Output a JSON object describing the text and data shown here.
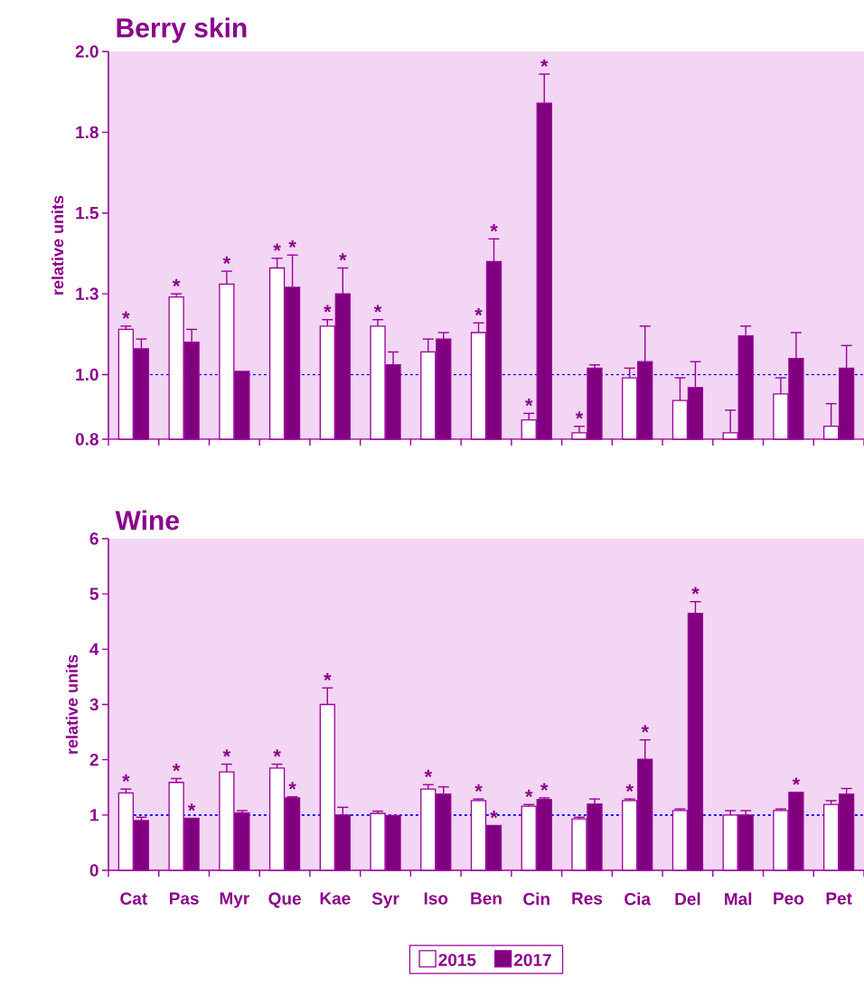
{
  "chart_data": [
    {
      "type": "bar",
      "title": "Berry skin",
      "ylabel": "relative units",
      "categories": [
        "Cat",
        "Pas",
        "Myr",
        "Que",
        "Kae",
        "Syr",
        "Iso",
        "Ben",
        "Cin",
        "Res",
        "Cia",
        "Del",
        "Mal",
        "Peo",
        "Pet"
      ],
      "ylim": [
        0.8,
        2.0
      ],
      "yticks": [
        0.8,
        {
          "value": 1.0,
          "label": "1.0"
        },
        {
          "value": 1.25,
          "label": "1.3"
        },
        1.5,
        {
          "value": 1.75,
          "label": "1.8"
        },
        {
          "value": 2.0,
          "label": "2.0"
        }
      ],
      "tick_labels": "y",
      "ref_lines": [
        {
          "axis": "y",
          "value": 1.0,
          "color": "#0000ff",
          "line_style": "dashed"
        }
      ],
      "series": [
        {
          "color": "#ffffff",
          "values": [
            1.14,
            1.24,
            1.28,
            1.33,
            1.15,
            1.15,
            1.07,
            1.13,
            0.86,
            0.82,
            0.99,
            0.92,
            0.82,
            0.94,
            0.84
          ],
          "errors": [
            [
              1.14,
              1.15
            ],
            [
              1.24,
              1.25
            ],
            [
              1.28,
              1.32
            ],
            [
              1.33,
              1.36
            ],
            [
              1.15,
              1.17
            ],
            [
              1.15,
              1.17
            ],
            [
              1.07,
              1.11
            ],
            [
              1.13,
              1.16
            ],
            [
              0.86,
              0.88
            ],
            [
              0.82,
              0.84
            ],
            [
              0.99,
              1.02
            ],
            [
              0.92,
              0.99
            ],
            [
              0.82,
              0.89
            ],
            [
              0.94,
              0.99
            ],
            [
              0.84,
              0.91
            ]
          ]
        },
        {
          "color": "#800080",
          "values": [
            1.08,
            1.1,
            1.01,
            1.27,
            1.25,
            1.03,
            1.11,
            1.35,
            1.84,
            1.02,
            1.04,
            0.96,
            1.12,
            1.05,
            1.02
          ],
          "errors": [
            [
              1.08,
              1.11
            ],
            [
              1.1,
              1.14
            ],
            null,
            [
              1.27,
              1.37
            ],
            [
              1.25,
              1.33
            ],
            [
              1.03,
              1.07
            ],
            [
              1.11,
              1.13
            ],
            [
              1.35,
              1.42
            ],
            [
              1.84,
              1.93
            ],
            [
              1.02,
              1.03
            ],
            [
              1.04,
              1.15
            ],
            [
              0.96,
              1.04
            ],
            [
              1.12,
              1.15
            ],
            [
              1.05,
              1.13
            ],
            [
              1.02,
              1.09
            ]
          ]
        }
      ],
      "annotations": [
        {
          "text": "*",
          "x": "Cat",
          "y": 1.15
        },
        {
          "text": "*",
          "x": "Pas",
          "y": 1.25
        },
        {
          "text": "*",
          "x": "Myr",
          "y": 1.32
        },
        {
          "text": "*",
          "x": "Que",
          "y": 1.36
        },
        {
          "text": "*",
          "x": "Que",
          "y": 1.37
        },
        {
          "text": "*",
          "x": "Kae",
          "y": 1.17
        },
        {
          "text": "*",
          "x": "Kae",
          "y": 1.33
        },
        {
          "text": "*",
          "x": "Syr",
          "y": 1.17
        },
        {
          "text": "*",
          "x": "Ben",
          "y": 1.16
        },
        {
          "text": "*",
          "x": "Ben",
          "y": 1.42
        },
        {
          "text": "*",
          "x": "Cin",
          "y": 0.88
        },
        {
          "text": "*",
          "x": "Cin",
          "y": 1.93
        },
        {
          "text": "*",
          "x": "Res",
          "y": 0.84
        }
      ]
    },
    {
      "type": "bar",
      "title": "Wine",
      "ylabel": "relative units",
      "categories": [
        "Cat",
        "Pas",
        "Myr",
        "Que",
        "Kae",
        "Syr",
        "Iso",
        "Ben",
        "Cin",
        "Res",
        "Cia",
        "Del",
        "Mal",
        "Peo",
        "Pet"
      ],
      "ylim": [
        0,
        6
      ],
      "yticks": [
        0,
        1,
        2,
        3,
        4,
        5,
        6
      ],
      "legend": "bottom",
      "ref_lines": [
        {
          "axis": "y",
          "value": 1,
          "color": "#0000ff",
          "line_style": "dashed"
        }
      ],
      "series": [
        {
          "name": "2015",
          "color": "#ffffff",
          "values": [
            1.4,
            1.59,
            1.78,
            1.85,
            3.0,
            1.03,
            1.47,
            1.26,
            1.16,
            0.93,
            1.26,
            1.08,
            1.0,
            1.08,
            1.19
          ],
          "errors": [
            [
              1.4,
              1.47
            ],
            [
              1.59,
              1.66
            ],
            [
              1.78,
              1.92
            ],
            [
              1.85,
              1.92
            ],
            [
              3.0,
              3.3
            ],
            [
              1.03,
              1.07
            ],
            [
              1.47,
              1.55
            ],
            [
              1.26,
              1.29
            ],
            [
              1.16,
              1.19
            ],
            [
              0.93,
              0.96
            ],
            [
              1.26,
              1.29
            ],
            [
              1.08,
              1.11
            ],
            [
              1.0,
              1.08
            ],
            [
              1.08,
              1.11
            ],
            [
              1.19,
              1.26
            ]
          ]
        },
        {
          "name": "2017",
          "color": "#800080",
          "values": [
            0.9,
            0.94,
            1.04,
            1.31,
            1.0,
            0.99,
            1.38,
            0.81,
            1.28,
            1.2,
            2.01,
            4.65,
            1.0,
            1.41,
            1.38
          ],
          "errors": [
            [
              0.9,
              0.96
            ],
            null,
            [
              1.04,
              1.08
            ],
            [
              1.31,
              1.33
            ],
            [
              1.0,
              1.14
            ],
            null,
            [
              1.38,
              1.51
            ],
            null,
            [
              1.28,
              1.31
            ],
            [
              1.2,
              1.29
            ],
            [
              2.01,
              2.36
            ],
            [
              4.65,
              4.86
            ],
            [
              1.0,
              1.08
            ],
            null,
            [
              1.38,
              1.48
            ]
          ]
        }
      ],
      "annotations": [
        {
          "text": "*",
          "x": "Cat",
          "y": 1.47
        },
        {
          "text": "*",
          "x": "Pas",
          "y": 1.66
        },
        {
          "text": "*",
          "x": "Pas",
          "y": 0.94
        },
        {
          "text": "*",
          "x": "Myr",
          "y": 1.92
        },
        {
          "text": "*",
          "x": "Que",
          "y": 1.92
        },
        {
          "text": "*",
          "x": "Que",
          "y": 1.33
        },
        {
          "text": "*",
          "x": "Kae",
          "y": 3.3
        },
        {
          "text": "*",
          "x": "Iso",
          "y": 1.55
        },
        {
          "text": "*",
          "x": "Ben",
          "y": 1.29
        },
        {
          "text": "*",
          "x": "Ben",
          "y": 0.81
        },
        {
          "text": "*",
          "x": "Cin",
          "y": 1.19
        },
        {
          "text": "*",
          "x": "Cin",
          "y": 1.31
        },
        {
          "text": "*",
          "x": "Cia",
          "y": 1.29
        },
        {
          "text": "*",
          "x": "Cia",
          "y": 2.36
        },
        {
          "text": "*",
          "x": "Del",
          "y": 4.86
        },
        {
          "text": "*",
          "x": "Peo",
          "y": 1.41
        }
      ]
    }
  ]
}
